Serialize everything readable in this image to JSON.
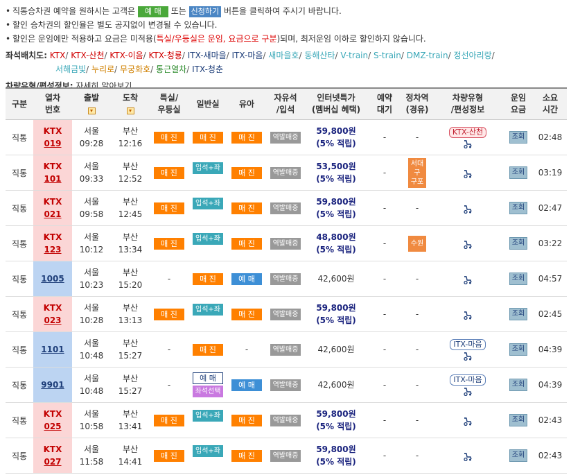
{
  "notice": {
    "line1_prefix": "직통승차권 예약을 원하시는 고객은",
    "line1_btn_reserve": "예 매",
    "line1_or": "또는",
    "line1_btn_apply": "신청하기",
    "line1_suffix": "버튼을 클릭하여 주시기 바랍니다.",
    "line2": "할인 승차권의 할인율은 별도 공지없이 변경될 수 있습니다.",
    "line3_prefix": "할인은 운임에만 적용하고 요금은 미적용(",
    "line3_red": "특실/우등실은 운임, 요금으로 구분",
    "line3_suffix": ")되며, 최저운임 이하로 할인하지 않습니다."
  },
  "seatmap": {
    "label": "좌석배치도:",
    "links": [
      {
        "text": "KTX",
        "color": "#d00000"
      },
      {
        "text": "KTX-산천",
        "color": "#d00000"
      },
      {
        "text": "KTX-이음",
        "color": "#d00000"
      },
      {
        "text": "KTX-청룡",
        "color": "#d00000"
      },
      {
        "text": "ITX-새마을",
        "color": "#1f3f7a"
      },
      {
        "text": "ITX-마음",
        "color": "#1f3f7a"
      },
      {
        "text": "새마을호",
        "color": "#3aa8b8"
      },
      {
        "text": "동해산타",
        "color": "#3aa8b8"
      },
      {
        "text": "V-train",
        "color": "#3aa8b8"
      },
      {
        "text": "S-train",
        "color": "#3aa8b8"
      },
      {
        "text": "DMZ-train",
        "color": "#3aa8b8"
      },
      {
        "text": "정선아리랑",
        "color": "#3aa8b8"
      },
      {
        "text": "서해금빛",
        "color": "#3aa8b8"
      },
      {
        "text": "누리로",
        "color": "#d08000"
      },
      {
        "text": "무궁화호",
        "color": "#d08000"
      },
      {
        "text": "통근열차",
        "color": "#2a8a2a"
      },
      {
        "text": "ITX-청춘",
        "color": "#1f3f7a"
      }
    ]
  },
  "carinfo": {
    "label": "차량유형/편성정보:",
    "link": "자세히 알아보기"
  },
  "table": {
    "headers": {
      "type": "구분",
      "train_no": [
        "열차",
        "번호"
      ],
      "depart": "출발",
      "arrive": "도착",
      "first": [
        "특실/",
        "우등실"
      ],
      "general": "일반실",
      "child": "유아",
      "standing": [
        "자유석",
        "/입석"
      ],
      "price": [
        "인터넷특가",
        "(멤버십 혜택)"
      ],
      "waiting": [
        "예약",
        "대기"
      ],
      "stop": [
        "정차역",
        "(경유)"
      ],
      "cartype": [
        "차량유형",
        "/편성정보"
      ],
      "fare": [
        "운임",
        "요금"
      ],
      "duration": [
        "소요",
        "시간"
      ]
    },
    "rows": [
      {
        "type": "직통",
        "kind": "ktx",
        "line": "KTX",
        "no": "019",
        "dep_st": "서울",
        "dep_t": "09:28",
        "arr_st": "부산",
        "arr_t": "12:16",
        "first": "매 진",
        "general": "매 진",
        "general_kind": "sold",
        "child": "매 진",
        "child_kind": "sold",
        "standing": "역발매중",
        "price": "59,800원",
        "benefit": "(5% 적립)",
        "waiting": "-",
        "stop": "-",
        "cartype": "KTX-산천",
        "cartype_kind": "red",
        "fare": "조회",
        "duration": "02:48"
      },
      {
        "type": "직통",
        "kind": "ktx",
        "line": "KTX",
        "no": "101",
        "dep_st": "서울",
        "dep_t": "09:33",
        "arr_st": "부산",
        "arr_t": "12:52",
        "first": "매 진",
        "general": "입석+좌석",
        "general_kind": "mix",
        "child": "매 진",
        "child_kind": "sold",
        "standing": "역발매중",
        "price": "53,500원",
        "benefit": "(5% 적립)",
        "waiting": "-",
        "stop": "서대구|구포",
        "cartype": "",
        "cartype_kind": "",
        "fare": "조회",
        "duration": "03:19"
      },
      {
        "type": "직통",
        "kind": "ktx",
        "line": "KTX",
        "no": "021",
        "dep_st": "서울",
        "dep_t": "09:58",
        "arr_st": "부산",
        "arr_t": "12:45",
        "first": "매 진",
        "general": "입석+좌석",
        "general_kind": "mix",
        "child": "매 진",
        "child_kind": "sold",
        "standing": "역발매중",
        "price": "59,800원",
        "benefit": "(5% 적립)",
        "waiting": "-",
        "stop": "-",
        "cartype": "",
        "cartype_kind": "",
        "fare": "조회",
        "duration": "02:47"
      },
      {
        "type": "직통",
        "kind": "ktx",
        "line": "KTX",
        "no": "123",
        "dep_st": "서울",
        "dep_t": "10:12",
        "arr_st": "부산",
        "arr_t": "13:34",
        "first": "매 진",
        "general": "입석+좌석",
        "general_kind": "mix",
        "child": "매 진",
        "child_kind": "sold",
        "standing": "역발매중",
        "price": "48,800원",
        "benefit": "(5% 적립)",
        "waiting": "-",
        "stop": "수원",
        "cartype": "",
        "cartype_kind": "",
        "fare": "조회",
        "duration": "03:22"
      },
      {
        "type": "직통",
        "kind": "mug",
        "line": "",
        "no": "1005",
        "dep_st": "서울",
        "dep_t": "10:23",
        "arr_st": "부산",
        "arr_t": "15:20",
        "first": "-",
        "general": "매 진",
        "general_kind": "sold",
        "child": "예 매",
        "child_kind": "reserve",
        "standing": "역발매중",
        "price": "42,600원",
        "benefit": "",
        "waiting": "-",
        "stop": "-",
        "cartype": "",
        "cartype_kind": "",
        "fare": "조회",
        "duration": "04:57"
      },
      {
        "type": "직통",
        "kind": "ktx",
        "line": "KTX",
        "no": "023",
        "dep_st": "서울",
        "dep_t": "10:28",
        "arr_st": "부산",
        "arr_t": "13:13",
        "first": "매 진",
        "general": "입석+좌석",
        "general_kind": "mix",
        "child": "매 진",
        "child_kind": "sold",
        "standing": "역발매중",
        "price": "59,800원",
        "benefit": "(5% 적립)",
        "waiting": "-",
        "stop": "-",
        "cartype": "",
        "cartype_kind": "",
        "fare": "조회",
        "duration": "02:45"
      },
      {
        "type": "직통",
        "kind": "mug",
        "line": "",
        "no": "1101",
        "dep_st": "서울",
        "dep_t": "10:48",
        "arr_st": "부산",
        "arr_t": "15:27",
        "first": "-",
        "general": "매 진",
        "general_kind": "sold",
        "child": "-",
        "child_kind": "none",
        "standing": "역발매중",
        "price": "42,600원",
        "benefit": "",
        "waiting": "-",
        "stop": "-",
        "cartype": "ITX-마음",
        "cartype_kind": "blue",
        "fare": "조회",
        "duration": "04:39"
      },
      {
        "type": "직통",
        "kind": "mug",
        "line": "",
        "no": "9901",
        "dep_st": "서울",
        "dep_t": "10:48",
        "arr_st": "부산",
        "arr_t": "15:27",
        "first": "-",
        "general": "예 매",
        "general_sub": "좌석선택",
        "general_kind": "reserve2",
        "child": "예 매",
        "child_kind": "reserve",
        "standing": "역발매중",
        "price": "42,600원",
        "benefit": "",
        "waiting": "-",
        "stop": "-",
        "cartype": "ITX-마음",
        "cartype_kind": "blue",
        "fare": "조회",
        "duration": "04:39"
      },
      {
        "type": "직통",
        "kind": "ktx",
        "line": "KTX",
        "no": "025",
        "dep_st": "서울",
        "dep_t": "10:58",
        "arr_st": "부산",
        "arr_t": "13:41",
        "first": "매 진",
        "general": "입석+좌석",
        "general_kind": "mix",
        "child": "매 진",
        "child_kind": "sold",
        "standing": "역발매중",
        "price": "59,800원",
        "benefit": "(5% 적립)",
        "waiting": "-",
        "stop": "-",
        "cartype": "",
        "cartype_kind": "",
        "fare": "조회",
        "duration": "02:43"
      },
      {
        "type": "직통",
        "kind": "ktx",
        "line": "KTX",
        "no": "027",
        "dep_st": "서울",
        "dep_t": "11:58",
        "arr_st": "부산",
        "arr_t": "14:41",
        "first": "매 진",
        "general": "입석+좌석",
        "general_kind": "mix",
        "child": "매 진",
        "child_kind": "sold",
        "standing": "역발매중",
        "price": "59,800원",
        "benefit": "(5% 적립)",
        "waiting": "-",
        "stop": "-",
        "cartype": "",
        "cartype_kind": "",
        "fare": "조회",
        "duration": "02:43"
      }
    ]
  },
  "icons": {
    "cart": "wheelchair-icon",
    "select": "sort-select-icon"
  }
}
